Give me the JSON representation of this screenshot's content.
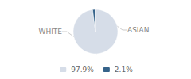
{
  "chart_data": {
    "type": "pie",
    "categories": [
      "WHITE",
      "ASIAN"
    ],
    "values": [
      97.9,
      2.1
    ],
    "value_labels": [
      "97.9%",
      "2.1%"
    ],
    "colors": [
      "#d6dde8",
      "#36638a"
    ],
    "legend": "bottom"
  }
}
